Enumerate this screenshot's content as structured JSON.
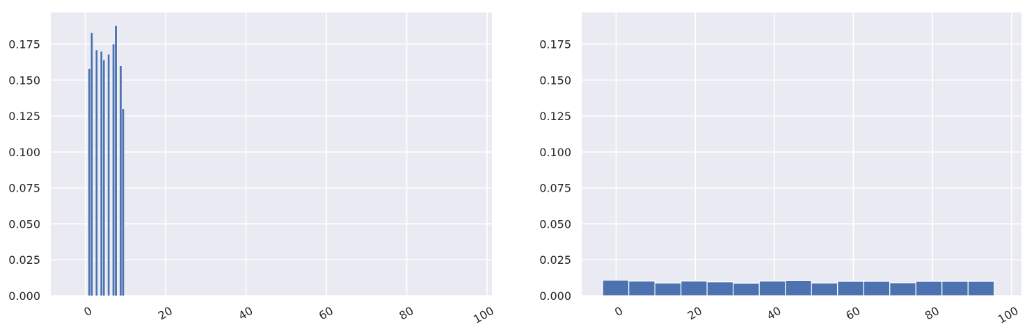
{
  "chart_data": [
    {
      "type": "bar",
      "title": "",
      "xlabel": "",
      "ylabel": "",
      "xlim": [
        -8.6,
        101.2
      ],
      "ylim": [
        0,
        0.197
      ],
      "xticks": [
        0,
        20,
        40,
        60,
        80,
        100
      ],
      "yticks": [
        0.0,
        0.025,
        0.05,
        0.075,
        0.1,
        0.125,
        0.15,
        0.175
      ],
      "xtick_labels": [
        "0",
        "20",
        "40",
        "60",
        "80",
        "100"
      ],
      "ytick_labels": [
        "0.000",
        "0.025",
        "0.050",
        "0.075",
        "0.100",
        "0.125",
        "0.150",
        "0.175"
      ],
      "grid": true,
      "bar_width": 0.6,
      "bars": [
        {
          "x": 1.0,
          "value": 0.158
        },
        {
          "x": 1.6,
          "value": 0.183
        },
        {
          "x": 2.8,
          "value": 0.171
        },
        {
          "x": 4.0,
          "value": 0.17
        },
        {
          "x": 4.6,
          "value": 0.164
        },
        {
          "x": 5.8,
          "value": 0.168
        },
        {
          "x": 7.0,
          "value": 0.175
        },
        {
          "x": 7.6,
          "value": 0.188
        },
        {
          "x": 8.8,
          "value": 0.16
        },
        {
          "x": 9.4,
          "value": 0.13
        }
      ],
      "color": "#4c72b0"
    },
    {
      "type": "bar",
      "title": "",
      "xlabel": "",
      "ylabel": "",
      "xlim": [
        -8.7,
        102.5
      ],
      "ylim": [
        0,
        0.197
      ],
      "xticks": [
        0,
        20,
        40,
        60,
        80,
        100
      ],
      "yticks": [
        0.0,
        0.025,
        0.05,
        0.075,
        0.1,
        0.125,
        0.15,
        0.175
      ],
      "xtick_labels": [
        "0",
        "20",
        "40",
        "60",
        "80",
        "100"
      ],
      "ytick_labels": [
        "0.000",
        "0.025",
        "0.050",
        "0.075",
        "0.100",
        "0.125",
        "0.150",
        "0.175"
      ],
      "grid": true,
      "bin_edges": [
        -3.4,
        3.2,
        9.8,
        16.4,
        23.0,
        29.6,
        36.2,
        42.8,
        49.4,
        56.0,
        62.6,
        69.2,
        75.8,
        82.4,
        89.0,
        95.6
      ],
      "values": [
        0.0108,
        0.0102,
        0.0088,
        0.0102,
        0.0097,
        0.0087,
        0.0102,
        0.0105,
        0.0088,
        0.0101,
        0.0101,
        0.0089,
        0.0101,
        0.0101,
        0.0101
      ],
      "color": "#4c72b0"
    }
  ]
}
